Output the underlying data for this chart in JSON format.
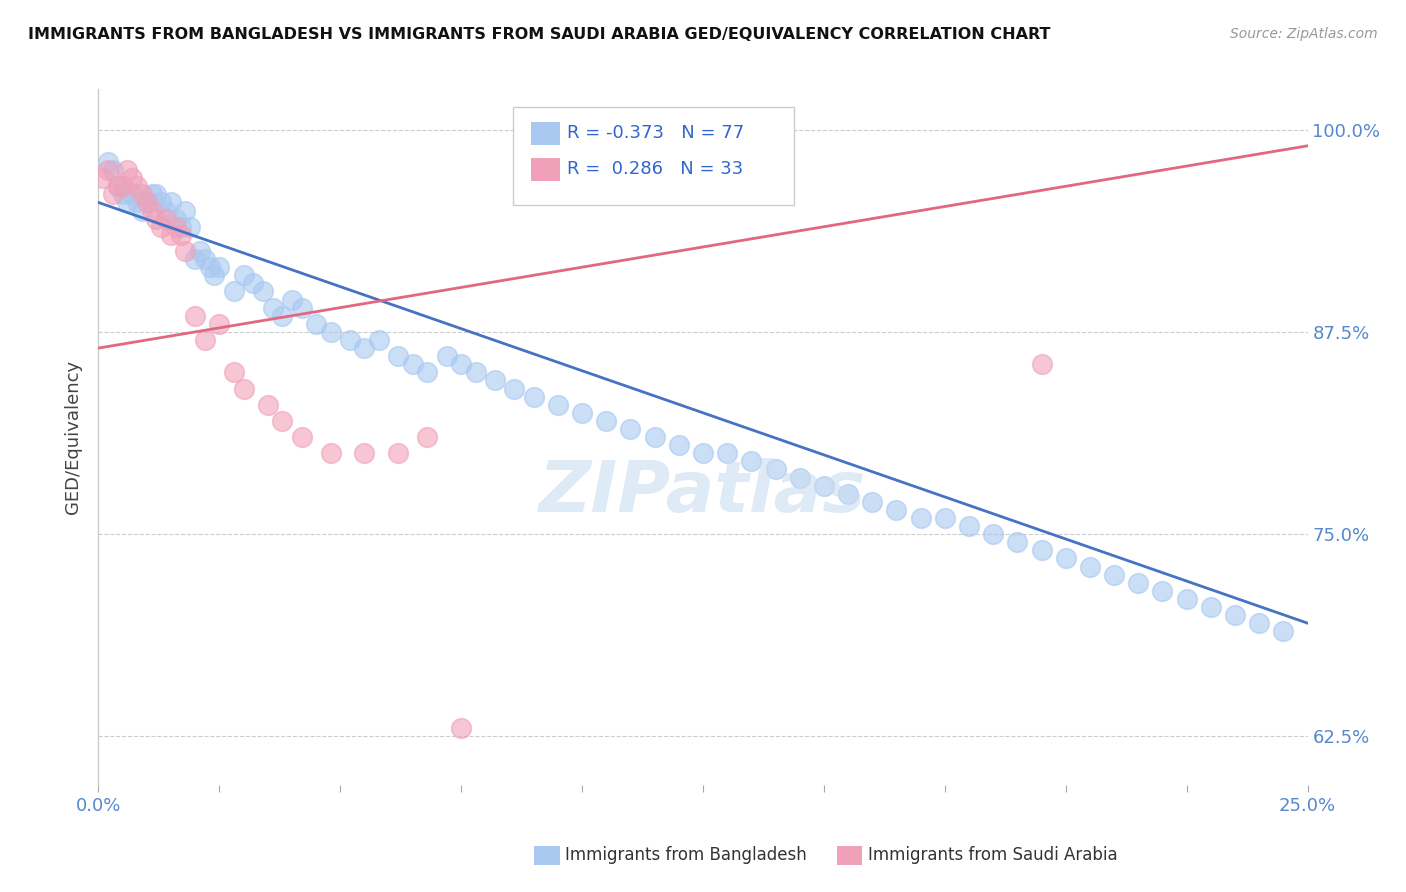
{
  "title": "IMMIGRANTS FROM BANGLADESH VS IMMIGRANTS FROM SAUDI ARABIA GED/EQUIVALENCY CORRELATION CHART",
  "source": "Source: ZipAtlas.com",
  "ylabel": "GED/Equivalency",
  "legend_blue_r": "-0.373",
  "legend_blue_n": "77",
  "legend_pink_r": "0.286",
  "legend_pink_n": "33",
  "blue_color": "#A8C8F0",
  "pink_color": "#F0A0B8",
  "blue_line_color": "#4472C4",
  "pink_line_color": "#E06880",
  "blue_scatter_x": [
    0.002,
    0.003,
    0.004,
    0.005,
    0.006,
    0.007,
    0.008,
    0.009,
    0.01,
    0.011,
    0.012,
    0.013,
    0.014,
    0.015,
    0.016,
    0.017,
    0.018,
    0.019,
    0.02,
    0.021,
    0.022,
    0.023,
    0.024,
    0.025,
    0.028,
    0.03,
    0.032,
    0.034,
    0.036,
    0.038,
    0.04,
    0.042,
    0.045,
    0.048,
    0.052,
    0.055,
    0.058,
    0.062,
    0.065,
    0.068,
    0.072,
    0.075,
    0.078,
    0.082,
    0.086,
    0.09,
    0.095,
    0.1,
    0.105,
    0.11,
    0.115,
    0.12,
    0.125,
    0.13,
    0.135,
    0.14,
    0.145,
    0.15,
    0.155,
    0.16,
    0.165,
    0.17,
    0.175,
    0.18,
    0.185,
    0.19,
    0.195,
    0.2,
    0.205,
    0.21,
    0.215,
    0.22,
    0.225,
    0.23,
    0.235,
    0.24,
    0.245
  ],
  "blue_scatter_y": [
    0.98,
    0.975,
    0.965,
    0.96,
    0.955,
    0.96,
    0.955,
    0.95,
    0.955,
    0.96,
    0.96,
    0.955,
    0.95,
    0.955,
    0.945,
    0.94,
    0.95,
    0.94,
    0.92,
    0.925,
    0.92,
    0.915,
    0.91,
    0.915,
    0.9,
    0.91,
    0.905,
    0.9,
    0.89,
    0.885,
    0.895,
    0.89,
    0.88,
    0.875,
    0.87,
    0.865,
    0.87,
    0.86,
    0.855,
    0.85,
    0.86,
    0.855,
    0.85,
    0.845,
    0.84,
    0.835,
    0.83,
    0.825,
    0.82,
    0.815,
    0.81,
    0.805,
    0.8,
    0.8,
    0.795,
    0.79,
    0.785,
    0.78,
    0.775,
    0.77,
    0.765,
    0.76,
    0.76,
    0.755,
    0.75,
    0.745,
    0.74,
    0.735,
    0.73,
    0.725,
    0.72,
    0.715,
    0.71,
    0.705,
    0.7,
    0.695,
    0.69
  ],
  "pink_scatter_x": [
    0.001,
    0.002,
    0.003,
    0.004,
    0.005,
    0.006,
    0.007,
    0.008,
    0.009,
    0.01,
    0.011,
    0.012,
    0.013,
    0.014,
    0.015,
    0.016,
    0.017,
    0.018,
    0.02,
    0.022,
    0.025,
    0.028,
    0.03,
    0.035,
    0.038,
    0.042,
    0.048,
    0.055,
    0.062,
    0.068,
    0.075,
    0.12,
    0.195
  ],
  "pink_scatter_y": [
    0.97,
    0.975,
    0.96,
    0.965,
    0.965,
    0.975,
    0.97,
    0.965,
    0.96,
    0.955,
    0.95,
    0.945,
    0.94,
    0.945,
    0.935,
    0.94,
    0.935,
    0.925,
    0.885,
    0.87,
    0.88,
    0.85,
    0.84,
    0.83,
    0.82,
    0.81,
    0.8,
    0.8,
    0.8,
    0.81,
    0.63,
    0.965,
    0.855
  ],
  "xlim": [
    0.0,
    0.25
  ],
  "ylim": [
    0.595,
    1.025
  ],
  "yticks": [
    0.625,
    0.75,
    0.875,
    1.0
  ],
  "ytick_labels": [
    "62.5%",
    "75.0%",
    "87.5%",
    "100.0%"
  ],
  "xticks": [
    0.0,
    0.025,
    0.05,
    0.075,
    0.1,
    0.125,
    0.15,
    0.175,
    0.2,
    0.225,
    0.25
  ],
  "xtick_labels": [
    "0.0%",
    "",
    "",
    "",
    "",
    "",
    "",
    "",
    "",
    "",
    "25.0%"
  ],
  "blue_trend_x": [
    0.0,
    0.25
  ],
  "blue_trend_y": [
    0.955,
    0.695
  ],
  "pink_trend_x": [
    0.0,
    0.25
  ],
  "pink_trend_y": [
    0.865,
    0.99
  ]
}
